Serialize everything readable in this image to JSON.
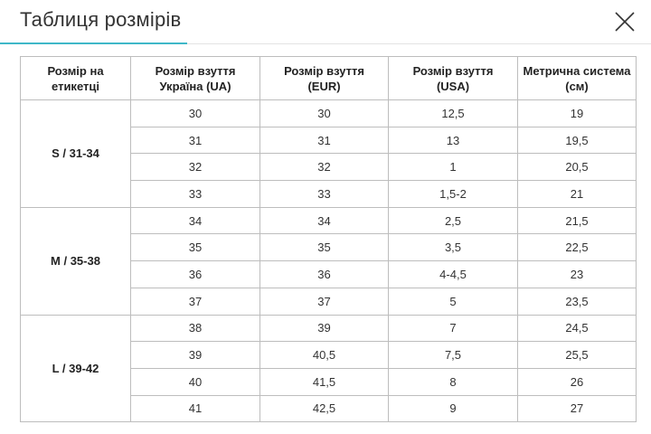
{
  "header": {
    "title": "Таблиця розмірів"
  },
  "table": {
    "headers": [
      [
        "Розмір на",
        "етикетці"
      ],
      [
        "Розмір взуття",
        "Україна (UA)"
      ],
      [
        "Розмір взуття",
        "(EUR)"
      ],
      [
        "Розмір взуття",
        "(USA)"
      ],
      [
        "Метрична система",
        "(см)"
      ]
    ],
    "groups": [
      {
        "label": "S / 31-34",
        "rows": [
          [
            "30",
            "30",
            "12,5",
            "19"
          ],
          [
            "31",
            "31",
            "13",
            "19,5"
          ],
          [
            "32",
            "32",
            "1",
            "20,5"
          ],
          [
            "33",
            "33",
            "1,5-2",
            "21"
          ]
        ]
      },
      {
        "label": "M / 35-38",
        "rows": [
          [
            "34",
            "34",
            "2,5",
            "21,5"
          ],
          [
            "35",
            "35",
            "3,5",
            "22,5"
          ],
          [
            "36",
            "36",
            "4-4,5",
            "23"
          ],
          [
            "37",
            "37",
            "5",
            "23,5"
          ]
        ]
      },
      {
        "label": "L / 39-42",
        "rows": [
          [
            "38",
            "39",
            "7",
            "24,5"
          ],
          [
            "39",
            "40,5",
            "7,5",
            "25,5"
          ],
          [
            "40",
            "41,5",
            "8",
            "26"
          ],
          [
            "41",
            "42,5",
            "9",
            "27"
          ]
        ]
      }
    ]
  }
}
